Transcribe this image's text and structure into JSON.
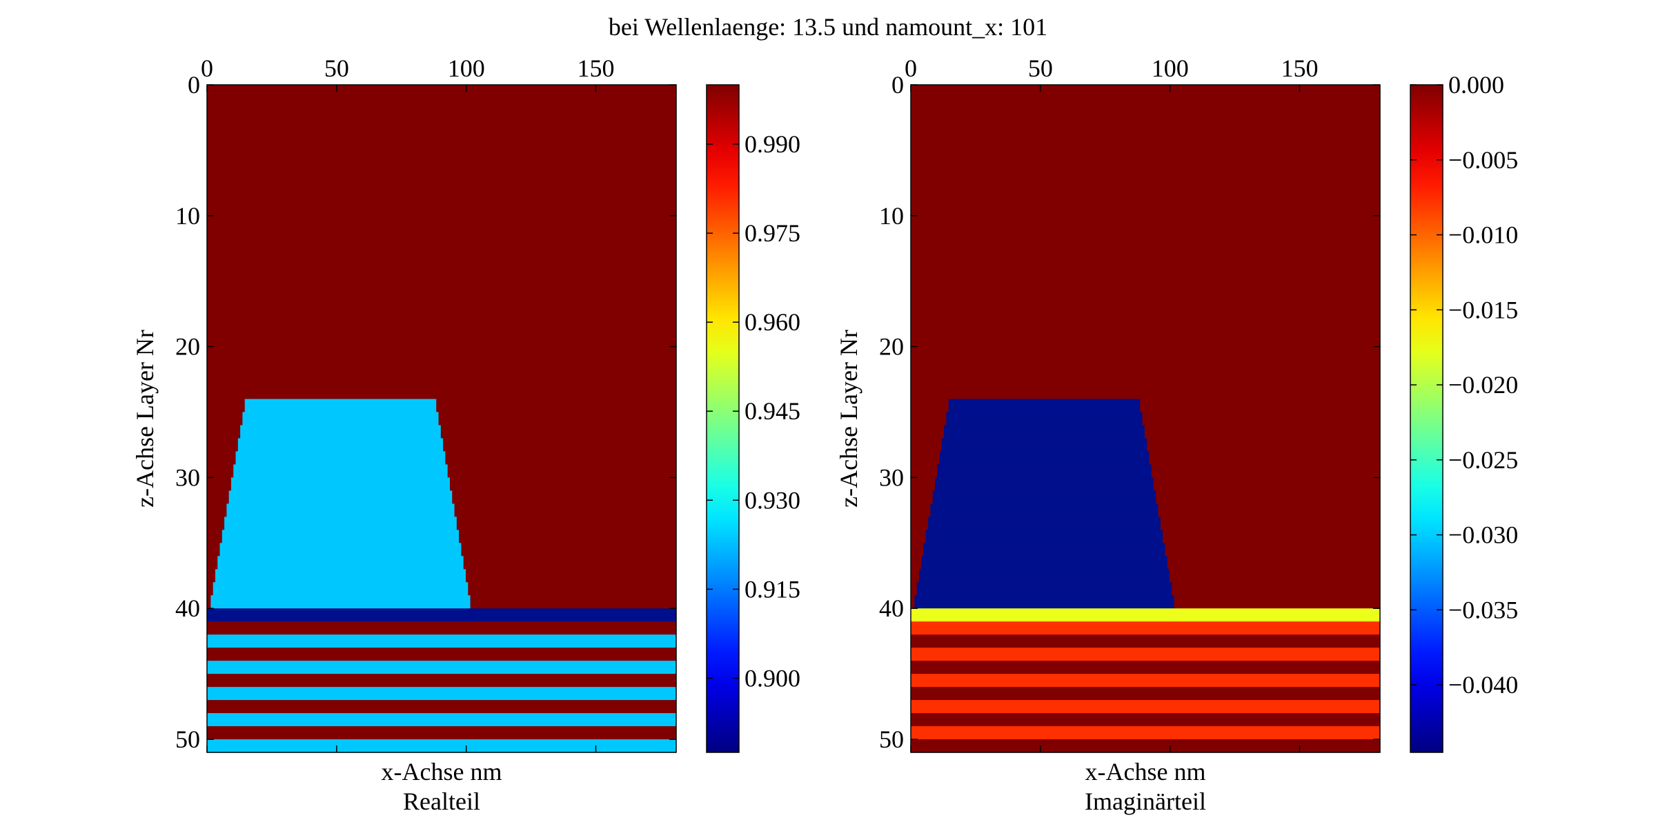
{
  "figure": {
    "suptitle": "bei Wellenlaenge: 13.5 und namount_x: 101"
  },
  "chart_data": [
    {
      "type": "heatmap",
      "title": "Realteil",
      "xlabel": "x-Achse nm",
      "ylabel": "z-Achse Layer Nr",
      "xlim": [
        0,
        181
      ],
      "ylim": [
        51,
        0
      ],
      "x_ticks": [
        0,
        50,
        100,
        150
      ],
      "y_ticks": [
        0,
        10,
        20,
        30,
        40,
        50
      ],
      "x_axis_position": "top",
      "grid": false,
      "colorbar": {
        "vmin": 0.8875,
        "vmax": 1.0,
        "ticks": [
          0.99,
          0.975,
          0.96,
          0.945,
          0.93,
          0.915,
          0.9
        ],
        "tick_labels": [
          "0.990",
          "0.975",
          "0.960",
          "0.945",
          "0.930",
          "0.915",
          "0.900"
        ],
        "position": "right",
        "colormap": "jet"
      },
      "background_value": 1.0,
      "regions": [
        {
          "shape": "trapezoid",
          "z_top": 24,
          "z_bottom": 40,
          "x_top": [
            15,
            88
          ],
          "x_bottom": [
            1,
            102
          ],
          "value": 0.9268,
          "color": "#00c8ff"
        },
        {
          "shape": "band",
          "z_range": [
            40,
            41
          ],
          "value": 0.8875,
          "color": "#000f8c"
        },
        {
          "shape": "band",
          "z_range": [
            41,
            42
          ],
          "value": 1.0,
          "color": "#800000"
        },
        {
          "shape": "band",
          "z_range": [
            42,
            43
          ],
          "value": 0.9268,
          "color": "#00c8ff"
        },
        {
          "shape": "band",
          "z_range": [
            43,
            44
          ],
          "value": 1.0,
          "color": "#800000"
        },
        {
          "shape": "band",
          "z_range": [
            44,
            45
          ],
          "value": 0.9268,
          "color": "#00c8ff"
        },
        {
          "shape": "band",
          "z_range": [
            45,
            46
          ],
          "value": 1.0,
          "color": "#800000"
        },
        {
          "shape": "band",
          "z_range": [
            46,
            47
          ],
          "value": 0.9268,
          "color": "#00c8ff"
        },
        {
          "shape": "band",
          "z_range": [
            47,
            48
          ],
          "value": 1.0,
          "color": "#800000"
        },
        {
          "shape": "band",
          "z_range": [
            48,
            49
          ],
          "value": 0.9268,
          "color": "#00c8ff"
        },
        {
          "shape": "band",
          "z_range": [
            49,
            50
          ],
          "value": 1.0,
          "color": "#800000"
        },
        {
          "shape": "band",
          "z_range": [
            50,
            51
          ],
          "value": 0.9268,
          "color": "#00c8ff"
        }
      ]
    },
    {
      "type": "heatmap",
      "title": "Imaginärteil",
      "xlabel": "x-Achse nm",
      "ylabel": "z-Achse Layer Nr",
      "xlim": [
        0,
        181
      ],
      "ylim": [
        51,
        0
      ],
      "x_ticks": [
        0,
        50,
        100,
        150
      ],
      "y_ticks": [
        0,
        10,
        20,
        30,
        40,
        50
      ],
      "x_axis_position": "top",
      "grid": false,
      "colorbar": {
        "vmin": -0.0445,
        "vmax": 0.0,
        "ticks": [
          0.0,
          -0.005,
          -0.01,
          -0.015,
          -0.02,
          -0.025,
          -0.03,
          -0.035,
          -0.04
        ],
        "tick_labels": [
          "0.000",
          "−0.005",
          "−0.010",
          "−0.015",
          "−0.020",
          "−0.025",
          "−0.030",
          "−0.035",
          "−0.040"
        ],
        "position": "right",
        "colormap": "jet"
      },
      "background_value": 0.0,
      "regions": [
        {
          "shape": "trapezoid",
          "z_top": 24,
          "z_bottom": 40,
          "x_top": [
            15,
            88
          ],
          "x_bottom": [
            1,
            102
          ],
          "value": -0.0445,
          "color": "#000f8c"
        },
        {
          "shape": "band",
          "z_range": [
            40,
            41
          ],
          "value": -0.017,
          "color": "#ecff1a"
        },
        {
          "shape": "band",
          "z_range": [
            41,
            42
          ],
          "value": -0.0065,
          "color": "#ff3000"
        },
        {
          "shape": "band",
          "z_range": [
            42,
            43
          ],
          "value": 0.0,
          "color": "#800000"
        },
        {
          "shape": "band",
          "z_range": [
            43,
            44
          ],
          "value": -0.0065,
          "color": "#ff3000"
        },
        {
          "shape": "band",
          "z_range": [
            44,
            45
          ],
          "value": 0.0,
          "color": "#800000"
        },
        {
          "shape": "band",
          "z_range": [
            45,
            46
          ],
          "value": -0.0065,
          "color": "#ff3000"
        },
        {
          "shape": "band",
          "z_range": [
            46,
            47
          ],
          "value": 0.0,
          "color": "#800000"
        },
        {
          "shape": "band",
          "z_range": [
            47,
            48
          ],
          "value": -0.0065,
          "color": "#ff3000"
        },
        {
          "shape": "band",
          "z_range": [
            48,
            49
          ],
          "value": 0.0,
          "color": "#800000"
        },
        {
          "shape": "band",
          "z_range": [
            49,
            50
          ],
          "value": -0.0065,
          "color": "#ff3000"
        },
        {
          "shape": "band",
          "z_range": [
            50,
            51
          ],
          "value": 0.0,
          "color": "#800000"
        }
      ]
    }
  ]
}
